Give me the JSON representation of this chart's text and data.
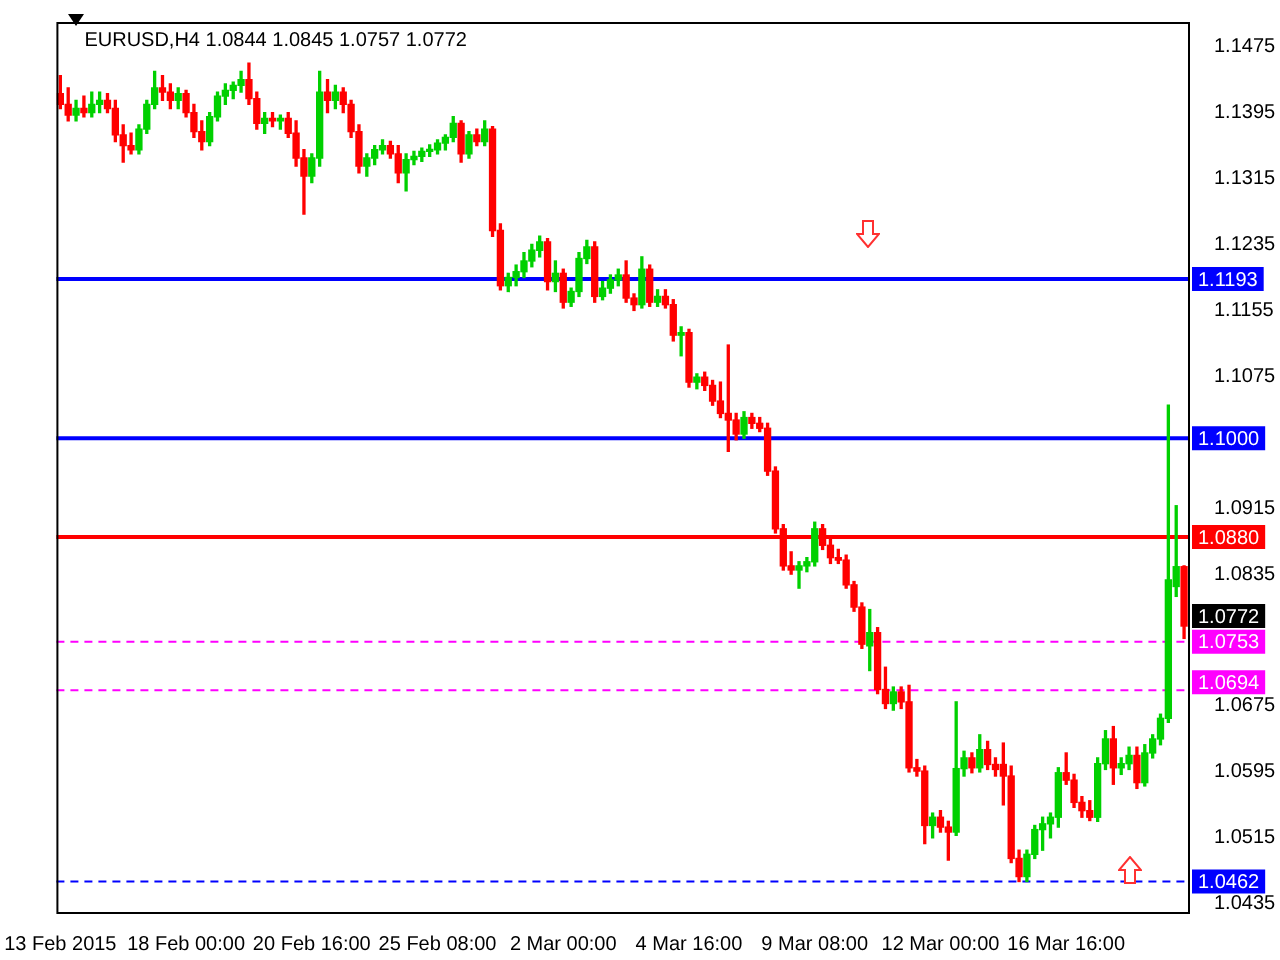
{
  "chart_data": {
    "type": "candlestick",
    "title": "EURUSD,H4 1.0844 1.0845 1.0757 1.0772",
    "categories": [
      "13 Feb 2015",
      null,
      null,
      null,
      null,
      null,
      null,
      null,
      null,
      null,
      null,
      null,
      null,
      null,
      null,
      null,
      "18 Feb 00:00",
      null,
      null,
      null,
      null,
      null,
      null,
      null,
      null,
      null,
      null,
      null,
      null,
      null,
      null,
      null,
      "20 Feb 16:00",
      null,
      null,
      null,
      null,
      null,
      null,
      null,
      null,
      null,
      null,
      null,
      null,
      null,
      null,
      null,
      "25 Feb 08:00",
      null,
      null,
      null,
      null,
      null,
      null,
      null,
      null,
      null,
      null,
      null,
      null,
      null,
      null,
      null,
      "2 Mar 00:00",
      null,
      null,
      null,
      null,
      null,
      null,
      null,
      null,
      null,
      null,
      null,
      null,
      null,
      null,
      null,
      "4 Mar 16:00",
      null,
      null,
      null,
      null,
      null,
      null,
      null,
      null,
      null,
      null,
      null,
      null,
      null,
      null,
      null,
      "9 Mar 08:00",
      null,
      null,
      null,
      null,
      null,
      null,
      null,
      null,
      null,
      null,
      null,
      null,
      null,
      null,
      null,
      "12 Mar 00:00",
      null,
      null,
      null,
      null,
      null,
      null,
      null,
      null,
      null,
      null,
      null,
      null,
      null,
      null,
      null,
      "16 Mar 16:00",
      null,
      null,
      null,
      null,
      null,
      null,
      null,
      null,
      null,
      null,
      null,
      null,
      null,
      null,
      null
    ],
    "ohlc": [
      [
        1.1418,
        1.144,
        1.14,
        1.1405
      ],
      [
        1.1405,
        1.1425,
        1.1385,
        1.1392
      ],
      [
        1.1392,
        1.141,
        1.1385,
        1.14
      ],
      [
        1.14,
        1.1415,
        1.139,
        1.1395
      ],
      [
        1.1395,
        1.142,
        1.139,
        1.1405
      ],
      [
        1.1405,
        1.142,
        1.1395,
        1.141
      ],
      [
        1.141,
        1.1418,
        1.1395,
        1.14
      ],
      [
        1.14,
        1.141,
        1.136,
        1.1368
      ],
      [
        1.1368,
        1.138,
        1.1335,
        1.1355
      ],
      [
        1.1355,
        1.137,
        1.1345,
        1.135
      ],
      [
        1.135,
        1.138,
        1.1345,
        1.1375
      ],
      [
        1.1375,
        1.141,
        1.137,
        1.1405
      ],
      [
        1.1405,
        1.1445,
        1.14,
        1.1425
      ],
      [
        1.1425,
        1.144,
        1.141,
        1.142
      ],
      [
        1.142,
        1.143,
        1.14,
        1.141
      ],
      [
        1.141,
        1.1425,
        1.14,
        1.1418
      ],
      [
        1.1418,
        1.1422,
        1.139,
        1.1395
      ],
      [
        1.1395,
        1.1405,
        1.1365,
        1.1372
      ],
      [
        1.1372,
        1.1385,
        1.135,
        1.136
      ],
      [
        1.136,
        1.1395,
        1.1355,
        1.139
      ],
      [
        1.139,
        1.142,
        1.1385,
        1.1415
      ],
      [
        1.1415,
        1.143,
        1.1405,
        1.1422
      ],
      [
        1.1422,
        1.1432,
        1.1412,
        1.1428
      ],
      [
        1.1428,
        1.1445,
        1.142,
        1.1435
      ],
      [
        1.1435,
        1.1455,
        1.1405,
        1.1412
      ],
      [
        1.1412,
        1.142,
        1.1375,
        1.1382
      ],
      [
        1.1382,
        1.1395,
        1.137,
        1.1388
      ],
      [
        1.1388,
        1.1395,
        1.1378,
        1.1385
      ],
      [
        1.1385,
        1.1392,
        1.1375,
        1.1388
      ],
      [
        1.1388,
        1.1395,
        1.1365,
        1.137
      ],
      [
        1.137,
        1.1385,
        1.133,
        1.134
      ],
      [
        1.134,
        1.135,
        1.1272,
        1.1318
      ],
      [
        1.1318,
        1.1345,
        1.131,
        1.134
      ],
      [
        1.134,
        1.1445,
        1.133,
        1.142
      ],
      [
        1.142,
        1.1435,
        1.1395,
        1.141
      ],
      [
        1.141,
        1.1428,
        1.14,
        1.142
      ],
      [
        1.142,
        1.1425,
        1.1395,
        1.1405
      ],
      [
        1.1405,
        1.141,
        1.1365,
        1.1372
      ],
      [
        1.1372,
        1.138,
        1.1322,
        1.133
      ],
      [
        1.133,
        1.1345,
        1.1318,
        1.134
      ],
      [
        1.134,
        1.1355,
        1.1332,
        1.135
      ],
      [
        1.135,
        1.1362,
        1.1345,
        1.1355
      ],
      [
        1.1355,
        1.136,
        1.134,
        1.1345
      ],
      [
        1.1345,
        1.1355,
        1.131,
        1.1322
      ],
      [
        1.1322,
        1.1345,
        1.13,
        1.1338
      ],
      [
        1.1338,
        1.1348,
        1.1332,
        1.1342
      ],
      [
        1.1342,
        1.1352,
        1.1336,
        1.1348
      ],
      [
        1.1348,
        1.1356,
        1.1342,
        1.135
      ],
      [
        1.135,
        1.1362,
        1.1345,
        1.1358
      ],
      [
        1.1358,
        1.1368,
        1.135,
        1.1365
      ],
      [
        1.1365,
        1.139,
        1.136,
        1.1382
      ],
      [
        1.1382,
        1.1385,
        1.1335,
        1.1345
      ],
      [
        1.1345,
        1.1372,
        1.134,
        1.1368
      ],
      [
        1.1368,
        1.1375,
        1.1355,
        1.136
      ],
      [
        1.136,
        1.1385,
        1.1355,
        1.1375
      ],
      [
        1.1375,
        1.1378,
        1.1245,
        1.1252
      ],
      [
        1.1252,
        1.126,
        1.118,
        1.1185
      ],
      [
        1.1185,
        1.12,
        1.1178,
        1.1195
      ],
      [
        1.1195,
        1.121,
        1.1185,
        1.1202
      ],
      [
        1.1202,
        1.1225,
        1.1195,
        1.1215
      ],
      [
        1.1215,
        1.1235,
        1.1208,
        1.1228
      ],
      [
        1.1228,
        1.1245,
        1.122,
        1.1238
      ],
      [
        1.1238,
        1.1242,
        1.118,
        1.119
      ],
      [
        1.119,
        1.1215,
        1.1178,
        1.12
      ],
      [
        1.12,
        1.1205,
        1.1158,
        1.1165
      ],
      [
        1.1165,
        1.1182,
        1.116,
        1.1178
      ],
      [
        1.1178,
        1.1225,
        1.1172,
        1.1218
      ],
      [
        1.1218,
        1.124,
        1.1212,
        1.1232
      ],
      [
        1.1232,
        1.1238,
        1.1165,
        1.1172
      ],
      [
        1.1172,
        1.119,
        1.1168,
        1.1182
      ],
      [
        1.1182,
        1.1198,
        1.1176,
        1.1192
      ],
      [
        1.1192,
        1.1205,
        1.1185,
        1.1198
      ],
      [
        1.1198,
        1.1215,
        1.1165,
        1.117
      ],
      [
        1.117,
        1.1175,
        1.1155,
        1.1162
      ],
      [
        1.1162,
        1.122,
        1.1158,
        1.1205
      ],
      [
        1.1205,
        1.121,
        1.116,
        1.1165
      ],
      [
        1.1165,
        1.118,
        1.116,
        1.1172
      ],
      [
        1.1172,
        1.118,
        1.1158,
        1.1162
      ],
      [
        1.1162,
        1.1168,
        1.1118,
        1.1125
      ],
      [
        1.1125,
        1.1135,
        1.11,
        1.1128
      ],
      [
        1.1128,
        1.1132,
        1.1062,
        1.1068
      ],
      [
        1.1068,
        1.1078,
        1.106,
        1.1074
      ],
      [
        1.1074,
        1.108,
        1.1058,
        1.1064
      ],
      [
        1.1064,
        1.107,
        1.104,
        1.1045
      ],
      [
        1.1045,
        1.1068,
        1.1025,
        1.103
      ],
      [
        1.103,
        1.1113,
        1.0984,
        1.1022
      ],
      [
        1.1022,
        1.103,
        1.0998,
        1.1005
      ],
      [
        1.1005,
        1.1032,
        1.1,
        1.1025
      ],
      [
        1.1025,
        1.103,
        1.1012,
        1.1018
      ],
      [
        1.1018,
        1.1025,
        1.1008,
        1.1012
      ],
      [
        1.1012,
        1.1018,
        1.0955,
        1.096
      ],
      [
        1.096,
        1.0965,
        1.0885,
        1.089
      ],
      [
        1.089,
        1.0895,
        1.084,
        1.0845
      ],
      [
        1.0845,
        1.0862,
        1.0835,
        1.084
      ],
      [
        1.084,
        1.085,
        1.0818,
        1.0845
      ],
      [
        1.0845,
        1.0855,
        1.0838,
        1.085
      ],
      [
        1.085,
        1.0898,
        1.0845,
        1.089
      ],
      [
        1.089,
        1.0895,
        1.0865,
        1.087
      ],
      [
        1.087,
        1.0878,
        1.0848,
        1.0855
      ],
      [
        1.0855,
        1.0865,
        1.0848,
        1.0852
      ],
      [
        1.0852,
        1.0858,
        1.0818,
        1.0822
      ],
      [
        1.0822,
        1.0826,
        1.079,
        1.0795
      ],
      [
        1.0795,
        1.08,
        1.0745,
        1.075
      ],
      [
        1.0748,
        1.0792,
        1.0718,
        1.0764
      ],
      [
        1.0764,
        1.077,
        1.069,
        1.0695
      ],
      [
        1.0695,
        1.0722,
        1.0672,
        1.0678
      ],
      [
        1.0678,
        1.0698,
        1.067,
        1.0692
      ],
      [
        1.0692,
        1.0698,
        1.0672,
        1.068
      ],
      [
        1.068,
        1.07,
        1.0595,
        1.06
      ],
      [
        1.06,
        1.061,
        1.059,
        1.0596
      ],
      [
        1.0596,
        1.0602,
        1.0508,
        1.053
      ],
      [
        1.053,
        1.0545,
        1.0515,
        1.054
      ],
      [
        1.054,
        1.0548,
        1.0522,
        1.0528
      ],
      [
        1.0528,
        1.0535,
        1.0488,
        1.0522
      ],
      [
        1.0522,
        1.068,
        1.0518,
        1.0599
      ],
      [
        1.0599,
        1.062,
        1.059,
        1.0612
      ],
      [
        1.0612,
        1.0618,
        1.0594,
        1.06
      ],
      [
        1.06,
        1.064,
        1.0595,
        1.0622
      ],
      [
        1.0622,
        1.0632,
        1.0598,
        1.0604
      ],
      [
        1.0604,
        1.0612,
        1.059,
        1.0598
      ],
      [
        1.0604,
        1.063,
        1.0555,
        1.059
      ],
      [
        1.059,
        1.0602,
        1.0485,
        1.049
      ],
      [
        1.049,
        1.05,
        1.0462,
        1.0468
      ],
      [
        1.0468,
        1.05,
        1.0462,
        1.0495
      ],
      [
        1.0495,
        1.053,
        1.049,
        1.0525
      ],
      [
        1.0525,
        1.054,
        1.05,
        1.0532
      ],
      [
        1.0532,
        1.0545,
        1.0515,
        1.054
      ],
      [
        1.054,
        1.06,
        1.0528,
        1.0594
      ],
      [
        1.0594,
        1.0618,
        1.058,
        1.0585
      ],
      [
        1.0585,
        1.0592,
        1.0552,
        1.0558
      ],
      [
        1.0558,
        1.0565,
        1.054,
        1.0548
      ],
      [
        1.0548,
        1.056,
        1.0536,
        1.054
      ],
      [
        1.054,
        1.0612,
        1.0535,
        1.0605
      ],
      [
        1.0605,
        1.0645,
        1.0598,
        1.0635
      ],
      [
        1.0635,
        1.065,
        1.058,
        1.06
      ],
      [
        1.06,
        1.0612,
        1.0592,
        1.0605
      ],
      [
        1.0605,
        1.0625,
        1.0598,
        1.0615
      ],
      [
        1.0615,
        1.0625,
        1.0575,
        1.0582
      ],
      [
        1.0582,
        1.0628,
        1.0578,
        1.0618
      ],
      [
        1.0618,
        1.064,
        1.0612,
        1.0635
      ],
      [
        1.0635,
        1.0665,
        1.0628,
        1.066
      ],
      [
        1.066,
        1.104,
        1.0655,
        1.0828
      ],
      [
        1.082,
        1.0918,
        1.0808,
        1.0844
      ],
      [
        1.0844,
        1.0845,
        1.0757,
        1.0772
      ]
    ],
    "ylim": [
      1.0425,
      1.1505
    ],
    "yticks": [
      1.1475,
      1.1395,
      1.1315,
      1.1235,
      1.1155,
      1.1075,
      1.0915,
      1.0835,
      1.0675,
      1.0595,
      1.0515,
      1.0435
    ],
    "ref_lines": [
      {
        "axis": "y",
        "value": 1.1193,
        "label": "1.1193",
        "color": "#0000ff",
        "line_style": "solid"
      },
      {
        "axis": "y",
        "value": 1.1,
        "label": "1.1000",
        "color": "#0000ff",
        "line_style": "solid"
      },
      {
        "axis": "y",
        "value": 1.088,
        "label": "1.0880",
        "color": "#ff0000",
        "line_style": "solid"
      },
      {
        "axis": "y",
        "value": 1.0753,
        "label": "1.0753",
        "color": "#ff00ff",
        "line_style": "dashed"
      },
      {
        "axis": "y",
        "value": 1.0694,
        "label": "1.0694",
        "color": "#ff00ff",
        "line_style": "dashed"
      },
      {
        "axis": "y",
        "value": 1.0462,
        "label": "1.0462",
        "color": "#0000ff",
        "line_style": "dashed"
      }
    ],
    "annotations": [
      "1.0772"
    ]
  }
}
